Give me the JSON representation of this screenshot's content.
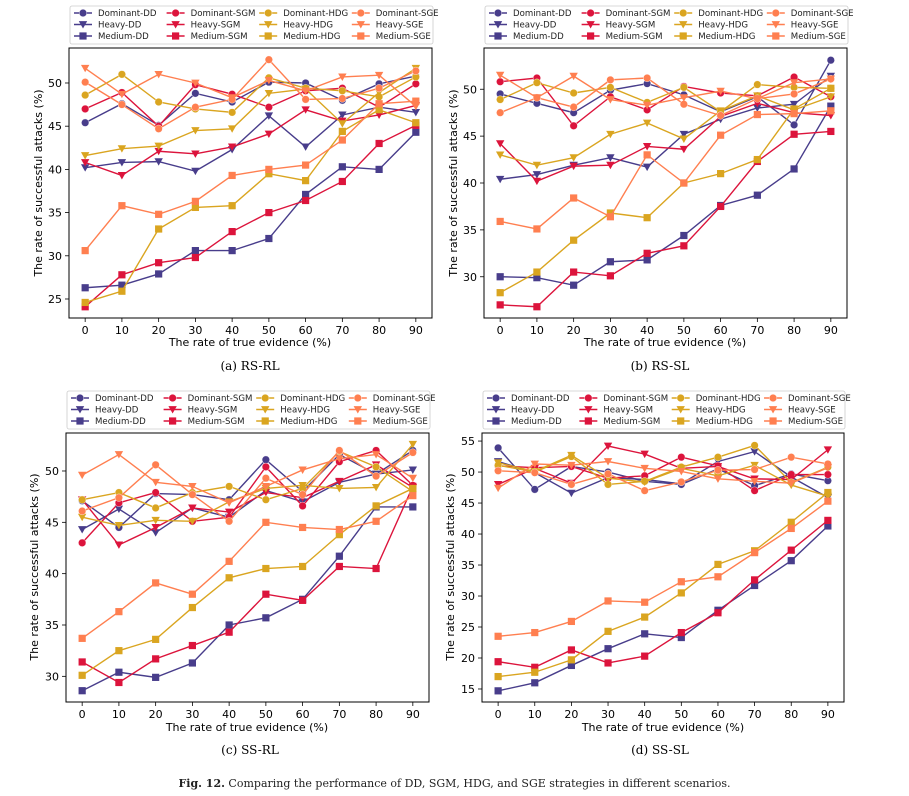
{
  "legend": [
    {
      "name": "Dominant-DD",
      "color": "#483d8b",
      "marker": "circle"
    },
    {
      "name": "Heavy-DD",
      "color": "#483d8b",
      "marker": "triangle-down"
    },
    {
      "name": "Medium-DD",
      "color": "#483d8b",
      "marker": "square"
    },
    {
      "name": "Dominant-SGM",
      "color": "#dc143c",
      "marker": "circle"
    },
    {
      "name": "Heavy-SGM",
      "color": "#dc143c",
      "marker": "triangle-down"
    },
    {
      "name": "Medium-SGM",
      "color": "#dc143c",
      "marker": "square"
    },
    {
      "name": "Dominant-HDG",
      "color": "#daa520",
      "marker": "circle"
    },
    {
      "name": "Heavy-HDG",
      "color": "#daa520",
      "marker": "triangle-down"
    },
    {
      "name": "Medium-HDG",
      "color": "#daa520",
      "marker": "square"
    },
    {
      "name": "Dominant-SGE",
      "color": "#ff7f50",
      "marker": "circle"
    },
    {
      "name": "Heavy-SGE",
      "color": "#ff7f50",
      "marker": "triangle-down"
    },
    {
      "name": "Medium-SGE",
      "color": "#ff7f50",
      "marker": "square"
    }
  ],
  "figure_caption": {
    "label": "Fig. 12.",
    "text": " Comparing the performance of DD, SGM, HDG, and SGE strategies in different scenarios."
  },
  "chart_data": [
    {
      "type": "line",
      "title": "(a) RS-RL",
      "xlabel": "The rate of true evidence (%)",
      "ylabel": "The rate of successful attacks (%)",
      "x": [
        0,
        10,
        20,
        30,
        40,
        50,
        60,
        70,
        80,
        90
      ],
      "xlim": [
        -4.4,
        94.4
      ],
      "ylim": [
        22.8,
        54.05
      ],
      "yticks": [
        25,
        30,
        35,
        40,
        45,
        50
      ],
      "legend_position": "top",
      "series": [
        {
          "name": "Dominant-DD",
          "values": [
            45.4,
            47.6,
            45.1,
            48.8,
            47.8,
            50.1,
            50.0,
            48.0,
            49.9,
            50.8
          ]
        },
        {
          "name": "Heavy-DD",
          "values": [
            40.2,
            40.8,
            40.9,
            39.8,
            42.3,
            46.2,
            42.6,
            46.3,
            47.2,
            46.6
          ]
        },
        {
          "name": "Medium-DD",
          "values": [
            26.3,
            26.6,
            27.9,
            30.6,
            30.6,
            32.0,
            37.1,
            40.3,
            40.0,
            44.3
          ]
        },
        {
          "name": "Dominant-SGM",
          "values": [
            47.0,
            48.9,
            45.0,
            49.8,
            48.7,
            47.2,
            49.1,
            49.4,
            47.2,
            49.9
          ]
        },
        {
          "name": "Heavy-SGM",
          "values": [
            40.8,
            39.3,
            42.1,
            41.8,
            42.6,
            44.1,
            46.9,
            45.6,
            46.3,
            47.4
          ]
        },
        {
          "name": "Medium-SGM",
          "values": [
            24.1,
            27.8,
            29.2,
            29.8,
            32.8,
            35.0,
            36.4,
            38.6,
            43.0,
            45.1
          ]
        },
        {
          "name": "Dominant-HDG",
          "values": [
            48.6,
            51.0,
            47.8,
            47.0,
            46.6,
            50.6,
            49.4,
            49.1,
            48.4,
            50.7
          ]
        },
        {
          "name": "Heavy-HDG",
          "values": [
            41.6,
            42.4,
            42.7,
            44.5,
            44.7,
            48.8,
            49.3,
            45.3,
            48.9,
            51.7
          ]
        },
        {
          "name": "Medium-HDG",
          "values": [
            24.6,
            25.9,
            33.1,
            35.6,
            35.8,
            39.5,
            38.7,
            44.4,
            46.9,
            45.4
          ]
        },
        {
          "name": "Dominant-SGE",
          "values": [
            50.1,
            47.5,
            44.7,
            47.2,
            48.1,
            52.7,
            48.1,
            48.2,
            49.4,
            51.4
          ]
        },
        {
          "name": "Heavy-SGE",
          "values": [
            51.7,
            48.7,
            51.0,
            50.0,
            48.3,
            50.3,
            49.1,
            50.7,
            50.9,
            47.3
          ]
        },
        {
          "name": "Medium-SGE",
          "values": [
            30.6,
            35.8,
            34.8,
            36.3,
            39.3,
            40.0,
            40.5,
            43.4,
            47.6,
            47.9
          ]
        }
      ]
    },
    {
      "type": "line",
      "title": "(b) RS-SL",
      "xlabel": "The rate of true evidence (%)",
      "ylabel": "The rate of successful attacks (%)",
      "x": [
        0,
        10,
        20,
        30,
        40,
        50,
        60,
        70,
        80,
        90
      ],
      "xlim": [
        -4.4,
        94.4
      ],
      "ylim": [
        25.6,
        54.4
      ],
      "yticks": [
        30,
        35,
        40,
        45,
        50
      ],
      "legend_position": "top",
      "series": [
        {
          "name": "Dominant-DD",
          "values": [
            49.5,
            48.5,
            47.5,
            49.9,
            50.6,
            49.4,
            47.6,
            49.2,
            46.2,
            53.1
          ]
        },
        {
          "name": "Heavy-DD",
          "values": [
            40.4,
            40.9,
            41.9,
            42.7,
            41.7,
            45.2,
            46.8,
            48.0,
            48.4,
            51.4
          ]
        },
        {
          "name": "Medium-DD",
          "values": [
            30.0,
            29.9,
            29.1,
            31.6,
            31.8,
            34.4,
            37.6,
            38.7,
            41.5,
            48.2
          ]
        },
        {
          "name": "Dominant-SGM",
          "values": [
            50.8,
            51.2,
            46.1,
            49.2,
            47.8,
            50.3,
            49.6,
            49.3,
            51.3,
            49.2
          ]
        },
        {
          "name": "Heavy-SGM",
          "values": [
            44.2,
            40.2,
            41.8,
            41.9,
            43.9,
            43.6,
            47.1,
            48.5,
            47.5,
            47.2
          ]
        },
        {
          "name": "Medium-SGM",
          "values": [
            27.0,
            26.8,
            30.5,
            30.1,
            32.5,
            33.3,
            37.5,
            42.3,
            45.2,
            45.5
          ]
        },
        {
          "name": "Dominant-HDG",
          "values": [
            48.9,
            50.7,
            49.6,
            50.2,
            48.6,
            50.2,
            47.6,
            50.5,
            50.2,
            50.1
          ]
        },
        {
          "name": "Heavy-HDG",
          "values": [
            43.0,
            41.9,
            42.7,
            45.2,
            46.4,
            44.7,
            47.7,
            49.3,
            47.8,
            49.2
          ]
        },
        {
          "name": "Medium-HDG",
          "values": [
            28.3,
            30.5,
            33.9,
            36.8,
            36.3,
            40.0,
            41.0,
            42.5,
            47.9,
            50.1
          ]
        },
        {
          "name": "Dominant-SGE",
          "values": [
            47.5,
            49.1,
            48.1,
            51.0,
            51.2,
            48.4,
            47.2,
            49.0,
            49.5,
            51.1
          ]
        },
        {
          "name": "Heavy-SGE",
          "values": [
            51.5,
            49.1,
            51.4,
            48.9,
            48.3,
            49.1,
            49.8,
            49.0,
            50.7,
            51.1
          ]
        },
        {
          "name": "Medium-SGE",
          "values": [
            35.9,
            35.1,
            38.4,
            36.4,
            43.0,
            40.0,
            45.1,
            47.3,
            47.4,
            47.7
          ]
        }
      ]
    },
    {
      "type": "line",
      "title": "(c) SS-RL",
      "xlabel": "The rate of true evidence (%)",
      "ylabel": "The rate of successful attacks (%)",
      "x": [
        0,
        10,
        20,
        30,
        40,
        50,
        60,
        70,
        80,
        90
      ],
      "xlim": [
        -4.4,
        94.4
      ],
      "ylim": [
        27.5,
        53.7
      ],
      "yticks": [
        30,
        35,
        40,
        45,
        50
      ],
      "legend_position": "top",
      "series": [
        {
          "name": "Dominant-DD",
          "values": [
            47.1,
            44.5,
            47.8,
            47.7,
            47.2,
            51.1,
            48.0,
            51.6,
            49.7,
            52.0
          ]
        },
        {
          "name": "Heavy-DD",
          "values": [
            44.3,
            46.3,
            44.0,
            46.4,
            45.5,
            48.1,
            47.0,
            48.9,
            49.7,
            50.1
          ]
        },
        {
          "name": "Medium-DD",
          "values": [
            28.6,
            30.4,
            29.9,
            31.3,
            35.0,
            35.7,
            37.5,
            41.7,
            46.5,
            46.5
          ]
        },
        {
          "name": "Dominant-SGM",
          "values": [
            43.0,
            46.9,
            47.9,
            45.1,
            45.5,
            50.4,
            46.6,
            50.9,
            52.0,
            48.6
          ]
        },
        {
          "name": "Heavy-SGM",
          "values": [
            47.2,
            42.8,
            44.5,
            46.4,
            46.0,
            47.9,
            47.4,
            49.0,
            50.6,
            48.4
          ]
        },
        {
          "name": "Medium-SGM",
          "values": [
            31.4,
            29.4,
            31.7,
            33.0,
            34.3,
            38.0,
            37.4,
            40.7,
            40.5,
            48.5
          ]
        },
        {
          "name": "Dominant-HDG",
          "values": [
            47.2,
            47.9,
            46.4,
            47.9,
            48.5,
            47.2,
            48.3,
            51.9,
            50.4,
            48.0
          ]
        },
        {
          "name": "Heavy-HDG",
          "values": [
            45.5,
            44.7,
            45.2,
            45.1,
            47.0,
            48.3,
            48.6,
            48.3,
            48.4,
            52.6
          ]
        },
        {
          "name": "Medium-HDG",
          "values": [
            30.1,
            32.5,
            33.6,
            36.7,
            39.6,
            40.5,
            40.7,
            43.8,
            46.6,
            48.3
          ]
        },
        {
          "name": "Dominant-SGE",
          "values": [
            46.1,
            47.4,
            50.6,
            47.7,
            45.1,
            49.3,
            47.7,
            52.0,
            49.5,
            51.8
          ]
        },
        {
          "name": "Heavy-SGE",
          "values": [
            49.6,
            51.6,
            48.9,
            48.5,
            46.9,
            48.5,
            50.1,
            51.2,
            51.6,
            49.3
          ]
        },
        {
          "name": "Medium-SGE",
          "values": [
            33.7,
            36.3,
            39.1,
            38.0,
            41.2,
            45.0,
            44.5,
            44.3,
            45.1,
            47.6
          ]
        }
      ]
    },
    {
      "type": "line",
      "title": "(d) SS-SL",
      "xlabel": "The rate of true evidence (%)",
      "ylabel": "The rate of successful attacks (%)",
      "x": [
        0,
        10,
        20,
        30,
        40,
        50,
        60,
        70,
        80,
        90
      ],
      "xlim": [
        -4.4,
        94.4
      ],
      "ylim": [
        12.9,
        56.3
      ],
      "yticks": [
        15,
        20,
        25,
        30,
        35,
        40,
        45,
        50,
        55
      ],
      "legend_position": "top",
      "series": [
        {
          "name": "Dominant-DD",
          "values": [
            53.9,
            47.2,
            50.9,
            50.0,
            48.5,
            48.0,
            50.5,
            47.8,
            49.7,
            48.6
          ]
        },
        {
          "name": "Heavy-DD",
          "values": [
            51.7,
            49.9,
            46.6,
            49.1,
            48.8,
            48.1,
            51.7,
            53.3,
            49.2,
            45.9
          ]
        },
        {
          "name": "Medium-DD",
          "values": [
            14.7,
            16.0,
            18.8,
            21.5,
            23.9,
            23.3,
            27.7,
            31.7,
            35.7,
            41.3
          ]
        },
        {
          "name": "Dominant-SGM",
          "values": [
            51.0,
            50.7,
            50.9,
            49.0,
            49.4,
            52.4,
            51.0,
            47.0,
            49.6,
            49.6
          ]
        },
        {
          "name": "Heavy-SGM",
          "values": [
            48.0,
            50.6,
            48.2,
            54.2,
            52.9,
            50.6,
            50.9,
            48.9,
            48.8,
            53.6
          ]
        },
        {
          "name": "Medium-SGM",
          "values": [
            19.4,
            18.5,
            21.3,
            19.2,
            20.3,
            24.1,
            27.3,
            32.6,
            37.4,
            42.2
          ]
        },
        {
          "name": "Dominant-HDG",
          "values": [
            51.1,
            50.0,
            52.5,
            48.0,
            48.5,
            50.8,
            52.4,
            54.3,
            48.3,
            50.8
          ]
        },
        {
          "name": "Heavy-HDG",
          "values": [
            51.5,
            50.1,
            52.7,
            49.0,
            48.4,
            50.6,
            49.4,
            51.1,
            47.9,
            46.1
          ]
        },
        {
          "name": "Medium-HDG",
          "values": [
            17.0,
            17.7,
            19.7,
            24.3,
            26.6,
            30.5,
            35.1,
            37.3,
            41.9,
            46.7
          ]
        },
        {
          "name": "Dominant-SGE",
          "values": [
            50.2,
            49.9,
            48.0,
            49.7,
            47.0,
            48.4,
            50.3,
            50.4,
            52.4,
            51.3
          ]
        },
        {
          "name": "Heavy-SGE",
          "values": [
            47.4,
            51.3,
            51.1,
            51.7,
            50.6,
            50.1,
            48.9,
            48.5,
            48.2,
            50.7
          ]
        },
        {
          "name": "Medium-SGE",
          "values": [
            23.5,
            24.1,
            25.9,
            29.2,
            29.0,
            32.3,
            33.1,
            37.0,
            40.9,
            45.3
          ]
        }
      ]
    }
  ]
}
